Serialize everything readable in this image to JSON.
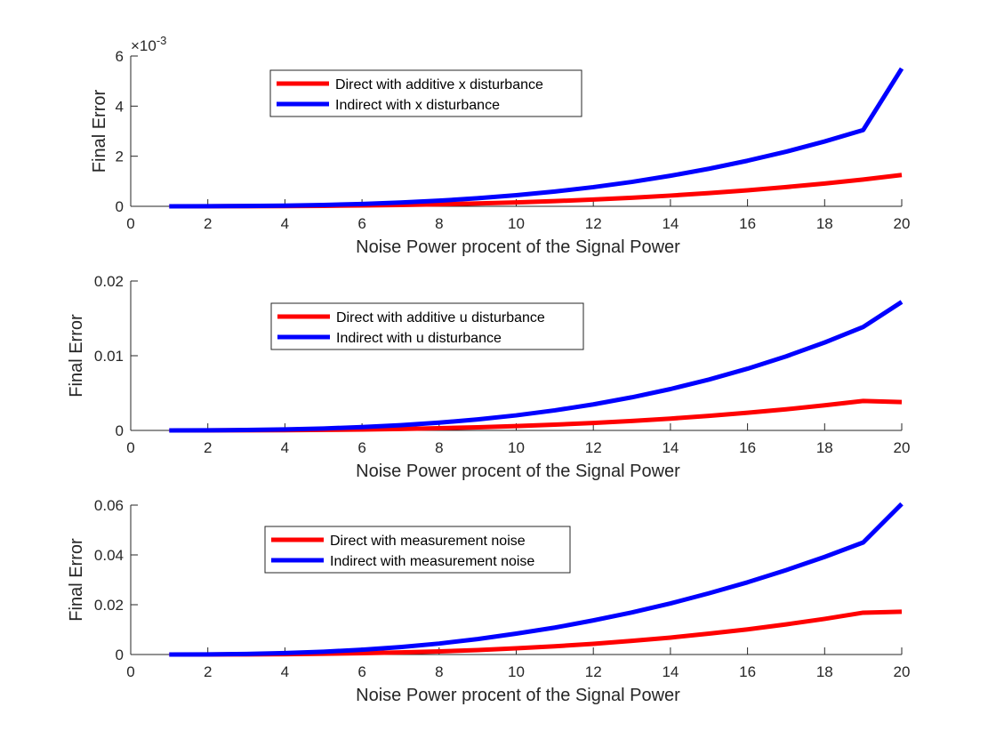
{
  "chart_data": [
    {
      "type": "line",
      "xlabel": "Noise Power procent of the Signal Power",
      "ylabel": "Final Error",
      "xlim": [
        0,
        20
      ],
      "ylim": [
        0,
        0.006
      ],
      "xticks": [
        0,
        2,
        4,
        6,
        8,
        10,
        12,
        14,
        16,
        18,
        20
      ],
      "xtick_labels": [
        "0",
        "2",
        "4",
        "6",
        "8",
        "10",
        "12",
        "14",
        "16",
        "18",
        "20"
      ],
      "yticks": [
        0,
        0.002,
        0.004,
        0.006
      ],
      "ytick_labels": [
        "0",
        "2",
        "4",
        "6"
      ],
      "y_exponent": {
        "base": "×10",
        "power": "-3"
      },
      "grid": false,
      "legend_position": "top-center",
      "x": [
        1,
        2,
        3,
        4,
        5,
        6,
        7,
        8,
        9,
        10,
        11,
        12,
        13,
        14,
        15,
        16,
        17,
        18,
        19,
        20
      ],
      "series": [
        {
          "name": "Direct with additive x disturbance",
          "color": "#ff0000",
          "values": [
            0,
            1e-06,
            4e-06,
            1e-05,
            2e-05,
            3.4e-05,
            5.4e-05,
            8e-05,
            0.000114,
            0.000156,
            0.000208,
            0.00027,
            0.000343,
            0.000428,
            0.000527,
            0.00064,
            0.000768,
            0.000911,
            0.001071,
            0.00125
          ]
        },
        {
          "name": "Indirect with x disturbance",
          "color": "#0000ff",
          "values": [
            0,
            3e-06,
            1.2e-05,
            2.8e-05,
            5.5e-05,
            9.5e-05,
            0.00015,
            0.000225,
            0.000322,
            0.000443,
            0.000591,
            0.000765,
            0.000974,
            0.00122,
            0.0015,
            0.00182,
            0.00218,
            0.00259,
            0.003045,
            0.0055
          ]
        }
      ]
    },
    {
      "type": "line",
      "xlabel": "Noise Power procent of the Signal Power",
      "ylabel": "Final Error",
      "xlim": [
        0,
        20
      ],
      "ylim": [
        0,
        0.02
      ],
      "xticks": [
        0,
        2,
        4,
        6,
        8,
        10,
        12,
        14,
        16,
        18,
        20
      ],
      "xtick_labels": [
        "0",
        "2",
        "4",
        "6",
        "8",
        "10",
        "12",
        "14",
        "16",
        "18",
        "20"
      ],
      "yticks": [
        0,
        0.01,
        0.02
      ],
      "ytick_labels": [
        "0",
        "0.01",
        "0.02"
      ],
      "grid": false,
      "legend_position": "top-center",
      "x": [
        1,
        2,
        3,
        4,
        5,
        6,
        7,
        8,
        9,
        10,
        11,
        12,
        13,
        14,
        15,
        16,
        17,
        18,
        19,
        20
      ],
      "series": [
        {
          "name": "Direct with additive u disturbance",
          "color": "#ff0000",
          "values": [
            0,
            3e-06,
            1.5e-05,
            3.7e-05,
            7.2e-05,
            0.000126,
            0.000199,
            0.000296,
            0.000421,
            0.000577,
            0.000768,
            0.000997,
            0.001268,
            0.001583,
            0.001947,
            0.002362,
            0.002831,
            0.003359,
            0.003948,
            0.0038
          ]
        },
        {
          "name": "Indirect with u disturbance",
          "color": "#0000ff",
          "values": [
            0,
            1.4e-05,
            5.8e-05,
            0.000135,
            0.000259,
            0.000442,
            0.000697,
            0.001036,
            0.001472,
            0.002017,
            0.002684,
            0.003485,
            0.004432,
            0.005536,
            0.00681,
            0.008266,
            0.009916,
            0.011772,
            0.013846,
            0.0172
          ]
        }
      ]
    },
    {
      "type": "line",
      "xlabel": "Noise Power procent of the Signal Power",
      "ylabel": "Final Error",
      "xlim": [
        0,
        20
      ],
      "ylim": [
        0,
        0.06
      ],
      "xticks": [
        0,
        2,
        4,
        6,
        8,
        10,
        12,
        14,
        16,
        18,
        20
      ],
      "xtick_labels": [
        "0",
        "2",
        "4",
        "6",
        "8",
        "10",
        "12",
        "14",
        "16",
        "18",
        "20"
      ],
      "yticks": [
        0,
        0.02,
        0.04,
        0.06
      ],
      "ytick_labels": [
        "0",
        "0.02",
        "0.04",
        "0.06"
      ],
      "grid": false,
      "legend_position": "top-center",
      "x": [
        1,
        2,
        3,
        4,
        5,
        6,
        7,
        8,
        9,
        10,
        11,
        12,
        13,
        14,
        15,
        16,
        17,
        18,
        19,
        20
      ],
      "series": [
        {
          "name": "Direct with measurement noise",
          "color": "#ff0000",
          "values": [
            0,
            1.3e-05,
            6e-05,
            0.00015,
            0.0003,
            0.00052,
            0.00083,
            0.00125,
            0.0018,
            0.0025,
            0.0033,
            0.0043,
            0.0055,
            0.0068,
            0.0084,
            0.0101,
            0.0121,
            0.0143,
            0.0168,
            0.0172
          ]
        },
        {
          "name": "Indirect with measurement noise",
          "color": "#0000ff",
          "values": [
            0,
            6e-05,
            0.00024,
            0.00058,
            0.00113,
            0.0019,
            0.003,
            0.0044,
            0.0062,
            0.0084,
            0.0108,
            0.0137,
            0.0169,
            0.0205,
            0.0246,
            0.029,
            0.0339,
            0.0392,
            0.045,
            0.0605
          ]
        }
      ]
    }
  ]
}
